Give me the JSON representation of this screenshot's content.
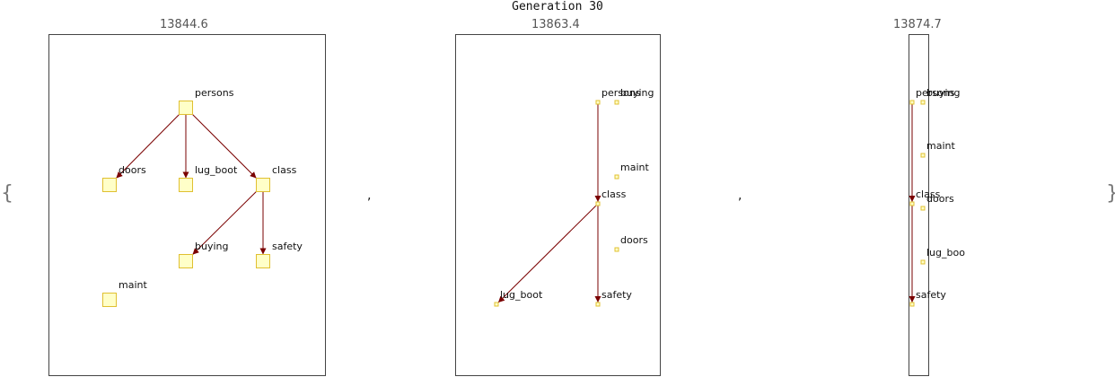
{
  "title": "Generation 30",
  "brace_open": "{",
  "brace_close": "}",
  "separator": ",",
  "panels": [
    {
      "score": "13844.6",
      "node_size": "large",
      "nodes": [
        {
          "id": "persons"
        },
        {
          "id": "doors"
        },
        {
          "id": "lug_boot"
        },
        {
          "id": "class"
        },
        {
          "id": "buying"
        },
        {
          "id": "safety"
        },
        {
          "id": "maint"
        }
      ],
      "edges": [
        [
          "persons",
          "doors"
        ],
        [
          "persons",
          "lug_boot"
        ],
        [
          "persons",
          "class"
        ],
        [
          "class",
          "buying"
        ],
        [
          "class",
          "safety"
        ]
      ]
    },
    {
      "score": "13863.4",
      "node_size": "small",
      "nodes": [
        {
          "id": "persons"
        },
        {
          "id": "buying"
        },
        {
          "id": "maint"
        },
        {
          "id": "class"
        },
        {
          "id": "doors"
        },
        {
          "id": "lug_boot"
        },
        {
          "id": "safety"
        }
      ],
      "edges": [
        [
          "persons",
          "class"
        ],
        [
          "class",
          "lug_boot"
        ],
        [
          "class",
          "safety"
        ]
      ]
    },
    {
      "score": "13874.7",
      "node_size": "small",
      "nodes": [
        {
          "id": "persons"
        },
        {
          "id": "buying"
        },
        {
          "id": "maint"
        },
        {
          "id": "class"
        },
        {
          "id": "doors"
        },
        {
          "id": "lug_boo"
        },
        {
          "id": "safety"
        }
      ],
      "edges": [
        [
          "persons",
          "class"
        ],
        [
          "class",
          "safety"
        ]
      ]
    }
  ]
}
